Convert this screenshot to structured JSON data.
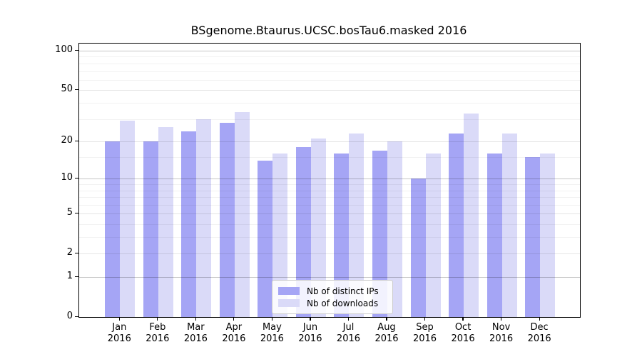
{
  "title": "BSgenome.Btaurus.UCSC.bosTau6.masked 2016",
  "legend": {
    "items": [
      {
        "label": "Nb of distinct IPs",
        "color": "#a5a5f5"
      },
      {
        "label": "Nb of downloads",
        "color": "#dadaf8"
      }
    ]
  },
  "chart_data": {
    "type": "bar",
    "title": "BSgenome.Btaurus.UCSC.bosTau6.masked 2016",
    "categories": [
      "Jan 2016",
      "Feb 2016",
      "Mar 2016",
      "Apr 2016",
      "May 2016",
      "Jun 2016",
      "Jul 2016",
      "Aug 2016",
      "Sep 2016",
      "Oct 2016",
      "Nov 2016",
      "Dec 2016"
    ],
    "x_tick_month": [
      "Jan",
      "Feb",
      "Mar",
      "Apr",
      "May",
      "Jun",
      "Jul",
      "Aug",
      "Sep",
      "Oct",
      "Nov",
      "Dec"
    ],
    "x_tick_year": "2016",
    "series": [
      {
        "name": "Nb of distinct IPs",
        "color": "#a5a5f5",
        "values": [
          20,
          20,
          24,
          28,
          14,
          18,
          16,
          17,
          10,
          23,
          16,
          15
        ]
      },
      {
        "name": "Nb of downloads",
        "color": "#dadaf8",
        "values": [
          29,
          26,
          30,
          34,
          16,
          21,
          23,
          20,
          16,
          33,
          23,
          16
        ]
      }
    ],
    "y_axis": {
      "scale": "log1p",
      "major_ticks": [
        0,
        1,
        2,
        5,
        10,
        20,
        50,
        100
      ],
      "decade_gridlines": [
        1,
        10,
        100
      ],
      "mid_gridlines": [
        2,
        5,
        20,
        50
      ],
      "minor_gridlines": [
        3,
        4,
        6,
        7,
        8,
        9,
        15,
        30,
        40,
        60,
        70,
        80,
        90
      ],
      "ylim": [
        0,
        100
      ]
    },
    "grid": true,
    "legend_position": "inside lower-center",
    "xlabel": "",
    "ylabel": ""
  },
  "colors": {
    "distinct_ips_bar": "#a5a5f5",
    "downloads_bar": "#dadaf8",
    "background": "#ffffff",
    "spine": "#000000",
    "gridline_decade": "#c8c8c8",
    "gridline_mid": "#e4e4e4",
    "gridline_minor": "#f2f2f2"
  }
}
